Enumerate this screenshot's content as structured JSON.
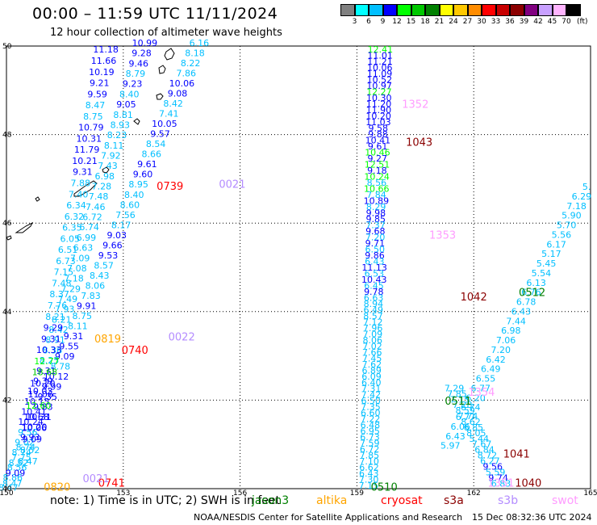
{
  "header": {
    "title": "00:00  –  11:59 UTC 11/11/2024",
    "subtitle": "12 hour collection of altimeter wave heights"
  },
  "colorbar": {
    "colors": [
      "#808080",
      "#00ffff",
      "#00bfff",
      "#0000ff",
      "#00ff00",
      "#00c800",
      "#008000",
      "#ffff00",
      "#ffc800",
      "#ff8c00",
      "#ff0000",
      "#c80000",
      "#8b0000",
      "#800080",
      "#c8a0ff",
      "#ffb4ff",
      "#000000"
    ],
    "labels": [
      "3",
      "6",
      "9",
      "12",
      "15",
      "18",
      "21",
      "24",
      "27",
      "30",
      "33",
      "36",
      "39",
      "42",
      "45",
      "70"
    ],
    "unit": "(ft)"
  },
  "map": {
    "lat_labels": [
      "50",
      "48",
      "46",
      "44",
      "42",
      "40"
    ],
    "lon_labels": [
      "150",
      "153",
      "156",
      "159",
      "162",
      "165"
    ],
    "satellite_labels": [
      {
        "text": "0022",
        "lon": 154.5,
        "lat": 43.35,
        "color": "#b48cff"
      },
      {
        "text": "0021",
        "lon": 155.8,
        "lat": 46.8,
        "color": "#b48cff"
      },
      {
        "text": "0739",
        "lon": 154.2,
        "lat": 46.75,
        "color": "#ff0000"
      },
      {
        "text": "0819",
        "lon": 152.6,
        "lat": 43.3,
        "color": "#ffa500"
      },
      {
        "text": "0740",
        "lon": 153.3,
        "lat": 43.05,
        "color": "#ff0000"
      },
      {
        "text": "0741",
        "lon": 152.7,
        "lat": 40.05,
        "color": "#ff0000"
      },
      {
        "text": "0820",
        "lon": 151.3,
        "lat": 39.95,
        "color": "#ffa500"
      },
      {
        "text": "0021",
        "lon": 152.3,
        "lat": 40.15,
        "color": "#b48cff"
      },
      {
        "text": "1352",
        "lon": 160.5,
        "lat": 48.6,
        "color": "#ff9cff"
      },
      {
        "text": "1043",
        "lon": 160.6,
        "lat": 47.75,
        "color": "#8b0000"
      },
      {
        "text": "1353",
        "lon": 161.2,
        "lat": 45.65,
        "color": "#ff9cff"
      },
      {
        "text": "1042",
        "lon": 162.0,
        "lat": 44.25,
        "color": "#8b0000"
      },
      {
        "text": "0512",
        "lon": 163.5,
        "lat": 44.35,
        "color": "#008000"
      },
      {
        "text": "1354",
        "lon": 162.2,
        "lat": 42.1,
        "color": "#ff9cff"
      },
      {
        "text": "0511",
        "lon": 161.6,
        "lat": 41.9,
        "color": "#008000"
      },
      {
        "text": "1041",
        "lon": 163.1,
        "lat": 40.7,
        "color": "#8b0000"
      },
      {
        "text": "1040",
        "lon": 163.4,
        "lat": 40.05,
        "color": "#8b0000"
      },
      {
        "text": "1351",
        "lon": 162.7,
        "lat": 40.05,
        "color": "#ff9cff"
      },
      {
        "text": "0510",
        "lon": 159.7,
        "lat": 39.95,
        "color": "#008000"
      }
    ],
    "tracks": [
      {
        "name": "track-a",
        "from": [
          154.95,
          50.0
        ],
        "to": [
          150.05,
          39.95
        ],
        "values": [
          "6.16",
          "8.18",
          "8.22",
          "7.86",
          "10.06",
          "9.08",
          "8.42",
          "7.41",
          "10.05",
          "9.57",
          "8.54",
          "8.66",
          "9.61",
          "9.60",
          "8.95",
          "8.40",
          "8.60",
          "7.56",
          "8.17",
          "9.03",
          "9.66",
          "9.53",
          "8.57",
          "8.43",
          "8.06",
          "7.83",
          "9.91",
          "8.75",
          "8.11",
          "9.31",
          "9.55",
          "9.09",
          "8.78",
          "10.12",
          "9.99",
          "9.35",
          "9.83",
          "10.31",
          "10.20",
          "9.93",
          "8.74",
          "7.75",
          "8.56",
          "8.86",
          "8.47"
        ],
        "colors": [
          "#00bfff",
          "#00bfff",
          "#00bfff",
          "#00bfff",
          "#0000ff",
          "#0000ff",
          "#00bfff",
          "#00bfff",
          "#0000ff",
          "#0000ff",
          "#00bfff",
          "#00bfff",
          "#0000ff",
          "#0000ff",
          "#00bfff",
          "#00bfff",
          "#00bfff",
          "#00bfff",
          "#00bfff",
          "#0000ff",
          "#0000ff",
          "#0000ff",
          "#00bfff",
          "#00bfff",
          "#00bfff",
          "#00bfff",
          "#0000ff",
          "#00bfff",
          "#00bfff",
          "#0000ff",
          "#0000ff",
          "#0000ff",
          "#00bfff",
          "#0000ff",
          "#0000ff",
          "#0000ff",
          "#0000ff",
          "#0000ff",
          "#0000ff",
          "#0000ff",
          "#00bfff",
          "#00bfff",
          "#00bfff",
          "#00bfff",
          "#00bfff"
        ]
      },
      {
        "name": "track-b",
        "from": [
          153.55,
          50.0
        ],
        "to": [
          150.15,
          40.05
        ],
        "values": [
          "10.99",
          "9.28",
          "9.46",
          "8.79",
          "9.23",
          "8.40",
          "9.05",
          "8.81",
          "8.93",
          "8.23",
          "8.11",
          "7.92",
          "7.43",
          "6.98",
          "7.28",
          "7.48",
          "7.46",
          "6.72",
          "6.74",
          "6.99",
          "6.63",
          "7.09",
          "7.08",
          "7.18",
          "7.29",
          "7.49",
          "7.93",
          "8.21",
          "8.42",
          "8.91",
          "8.36",
          "8.25",
          "9.31",
          "9.39",
          "10.03",
          "10.15",
          "10.41",
          "10.24",
          "9.56",
          "9.02",
          "8.74",
          "8.52",
          "9.09",
          "8.47"
        ],
        "colors": [
          "#0000ff",
          "#0000ff",
          "#0000ff",
          "#00bfff",
          "#0000ff",
          "#00bfff",
          "#0000ff",
          "#00bfff",
          "#00bfff",
          "#00bfff",
          "#00bfff",
          "#00bfff",
          "#00bfff",
          "#00bfff",
          "#00bfff",
          "#00bfff",
          "#00bfff",
          "#00bfff",
          "#00bfff",
          "#00bfff",
          "#00bfff",
          "#00bfff",
          "#00bfff",
          "#00bfff",
          "#00bfff",
          "#00bfff",
          "#00bfff",
          "#00bfff",
          "#00bfff",
          "#00bfff",
          "#00bfff",
          "#00bfff",
          "#0000ff",
          "#0000ff",
          "#0000ff",
          "#0000ff",
          "#0000ff",
          "#0000ff",
          "#00bfff",
          "#00bfff",
          "#00bfff",
          "#00bfff",
          "#0000ff",
          "#00bfff"
        ]
      },
      {
        "name": "track-c",
        "from": [
          152.55,
          49.85
        ],
        "to": [
          150.55,
          40.55
        ],
        "values": [
          "11.18",
          "11.66",
          "10.19",
          "9.21",
          "9.59",
          "8.47",
          "8.75",
          "10.79",
          "10.31",
          "11.79",
          "10.21",
          "9.31",
          "7.88",
          "7.40",
          "6.34",
          "6.32",
          "6.35",
          "6.05",
          "6.51",
          "6.73",
          "7.15",
          "7.48",
          "8.37",
          "7.76",
          "8.21",
          "9.29",
          "9.31",
          "10.33",
          "12.77",
          "18.68",
          "10.20",
          "11.06",
          "12.60",
          "10.68",
          "10.06",
          "9.09",
          "8.52",
          "8.47"
        ],
        "colors": [
          "#0000ff",
          "#0000ff",
          "#0000ff",
          "#0000ff",
          "#0000ff",
          "#00bfff",
          "#00bfff",
          "#0000ff",
          "#0000ff",
          "#0000ff",
          "#0000ff",
          "#0000ff",
          "#00bfff",
          "#00bfff",
          "#00bfff",
          "#00bfff",
          "#00bfff",
          "#00bfff",
          "#00bfff",
          "#00bfff",
          "#00bfff",
          "#00bfff",
          "#00bfff",
          "#00bfff",
          "#00bfff",
          "#0000ff",
          "#0000ff",
          "#0000ff",
          "#00ff00",
          "#00c800",
          "#0000ff",
          "#0000ff",
          "#00ff00",
          "#0000ff",
          "#0000ff",
          "#0000ff",
          "#00bfff",
          "#00bfff"
        ]
      },
      {
        "name": "track-d",
        "from": [
          159.6,
          49.85
        ],
        "to": [
          159.3,
          40.0
        ],
        "values": [
          "12.41",
          "11.01",
          "11.21",
          "10.06",
          "11.09",
          "10.52",
          "10.97",
          "12.27",
          "10.30",
          "11.20",
          "11.90",
          "10.20",
          "11.03",
          "9.58",
          "9.88",
          "10.41",
          "9.61",
          "10.46",
          "9.27",
          "12.51",
          "9.18",
          "10.24",
          "8.56",
          "10.66",
          "7.84",
          "10.89",
          "8.29",
          "9.98",
          "9.85",
          "7.37",
          "9.68",
          "7.20",
          "9.71",
          "6.50",
          "9.86",
          "6.43",
          "11.13",
          "6.53",
          "10.43",
          "6.45",
          "9.78",
          "6.63",
          "8.94",
          "6.49",
          "8.57",
          "7.12",
          "7.96",
          "7.09",
          "8.06",
          "7.02",
          "7.66",
          "7.45",
          "7.62",
          "6.89",
          "6.09",
          "6.40",
          "7.31",
          "7.42",
          "6.50",
          "7.35",
          "6.60",
          "7.22",
          "6.48",
          "6.95",
          "6.73",
          "7.59",
          "6.72",
          "7.85",
          "7.10",
          "6.62",
          "6.43",
          "7.30",
          "7.15"
        ],
        "colors": [
          "#00ff00",
          "#0000ff",
          "#0000ff",
          "#0000ff",
          "#0000ff",
          "#0000ff",
          "#0000ff",
          "#00ff00",
          "#0000ff",
          "#0000ff",
          "#0000ff",
          "#0000ff",
          "#0000ff",
          "#0000ff",
          "#0000ff",
          "#0000ff",
          "#0000ff",
          "#00ff00",
          "#0000ff",
          "#00ff00",
          "#0000ff",
          "#00ff00",
          "#00bfff",
          "#00ff00",
          "#00bfff",
          "#0000ff",
          "#00bfff",
          "#0000ff",
          "#0000ff",
          "#00bfff",
          "#0000ff",
          "#00bfff",
          "#0000ff",
          "#00bfff",
          "#0000ff",
          "#00bfff",
          "#0000ff",
          "#00bfff",
          "#0000ff",
          "#00bfff",
          "#0000ff",
          "#00bfff",
          "#00bfff",
          "#00bfff",
          "#00bfff",
          "#00bfff",
          "#00bfff",
          "#00bfff",
          "#00bfff",
          "#00bfff",
          "#00bfff",
          "#00bfff",
          "#00bfff",
          "#00bfff",
          "#00bfff",
          "#00bfff",
          "#00bfff",
          "#00bfff",
          "#00bfff",
          "#00bfff",
          "#00bfff",
          "#00bfff",
          "#00bfff",
          "#00bfff",
          "#00bfff",
          "#00bfff",
          "#00bfff",
          "#00bfff",
          "#00bfff",
          "#00bfff",
          "#00bfff",
          "#00bfff",
          "#00bfff"
        ]
      },
      {
        "name": "track-e",
        "from": [
          164.9,
          46.75
        ],
        "to": [
          161.4,
          40.9
        ],
        "values": [
          "5.",
          "6.29",
          "7.18",
          "5.90",
          "5.70",
          "5.56",
          "6.17",
          "5.17",
          "5.45",
          "5.54",
          "6.13",
          "6.76",
          "6.78",
          "6.43",
          "7.44",
          "6.98",
          "7.06",
          "7.20",
          "6.42",
          "6.49",
          "6.55",
          "6.77",
          "6.20",
          "6.74",
          "6.77",
          "6.06",
          "6.43",
          "5.97"
        ],
        "colors": [
          "#00bfff",
          "#00bfff",
          "#00bfff",
          "#00bfff",
          "#00bfff",
          "#00bfff",
          "#00bfff",
          "#00bfff",
          "#00bfff",
          "#00bfff",
          "#00bfff",
          "#00bfff",
          "#00bfff",
          "#00bfff",
          "#00bfff",
          "#00bfff",
          "#00bfff",
          "#00bfff",
          "#00bfff",
          "#00bfff",
          "#00bfff",
          "#00bfff",
          "#00bfff",
          "#00bfff",
          "#00bfff",
          "#00bfff",
          "#00bfff",
          "#00bfff"
        ]
      },
      {
        "name": "track-f",
        "from": [
          161.5,
          42.2
        ],
        "to": [
          162.7,
          40.05
        ],
        "values": [
          "7.29",
          "7.85",
          "7.15",
          "7.28",
          "8.59",
          "7.74",
          "8.62",
          "6.85",
          "8.05",
          "5.44",
          "7.67",
          "6.84",
          "8.72",
          "6.27",
          "9.56",
          "5.59",
          "9.74",
          "6.83"
        ],
        "colors": [
          "#00bfff",
          "#00bfff",
          "#00bfff",
          "#00bfff",
          "#00bfff",
          "#00bfff",
          "#00bfff",
          "#00bfff",
          "#00bfff",
          "#00bfff",
          "#00bfff",
          "#00bfff",
          "#00bfff",
          "#00bfff",
          "#0000ff",
          "#00bfff",
          "#0000ff",
          "#00bfff"
        ]
      }
    ]
  },
  "legend": {
    "note": "note:  1) Time is in UTC; 2) SWH is in feet",
    "satellites": [
      {
        "label": "jason3",
        "color": "#008000"
      },
      {
        "label": "altika",
        "color": "#ffa500"
      },
      {
        "label": "cryosat",
        "color": "#ff0000"
      },
      {
        "label": "s3a",
        "color": "#8b0000"
      },
      {
        "label": "s3b",
        "color": "#b48cff"
      },
      {
        "label": "swot",
        "color": "#ff9cff"
      }
    ]
  },
  "footer": {
    "credit": "NOAA/NESDIS Center for Satellite Applications and Research",
    "timestamp": "15 Dec 08:32:36 UTC 2024"
  }
}
